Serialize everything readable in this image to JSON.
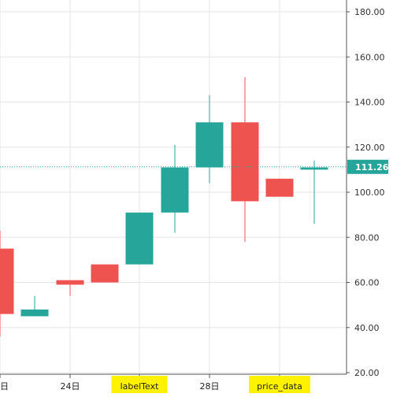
{
  "chart_data": {
    "type": "candlestick",
    "y_axis": {
      "range": [
        20,
        180
      ],
      "ticks": [
        "180.00",
        "160.00",
        "140.00",
        "120.00",
        "100.00",
        "80.00",
        "60.00",
        "40.00",
        "20.00"
      ],
      "position": "right"
    },
    "x_axis": {
      "labels": [
        "日",
        "24日",
        "labelText",
        "28日",
        "price_data"
      ],
      "highlighted_labels": [
        "labelText",
        "price_data"
      ]
    },
    "last_price": {
      "value": 111.26,
      "label": "111.26"
    },
    "candles": [
      {
        "open": 75,
        "high": 83,
        "low": 36,
        "close": 46
      },
      {
        "open": 45,
        "high": 54,
        "low": 45,
        "close": 48
      },
      {
        "open": 61,
        "high": 61,
        "low": 54,
        "close": 59
      },
      {
        "open": 68,
        "high": 68,
        "low": 60,
        "close": 60
      },
      {
        "open": 68,
        "high": 91,
        "low": 68,
        "close": 91
      },
      {
        "open": 91,
        "high": 121,
        "low": 82,
        "close": 111
      },
      {
        "open": 111,
        "high": 143,
        "low": 104,
        "close": 131
      },
      {
        "open": 131,
        "high": 151,
        "low": 78,
        "close": 96
      },
      {
        "open": 106,
        "high": 106,
        "low": 98,
        "close": 98
      },
      {
        "open": 110,
        "high": 114,
        "low": 86,
        "close": 111
      }
    ],
    "colors": {
      "up": "#26a69a",
      "down": "#ef5350",
      "grid": "#e6e6e6",
      "axis": "#555555",
      "highlight": "#fff200"
    }
  }
}
